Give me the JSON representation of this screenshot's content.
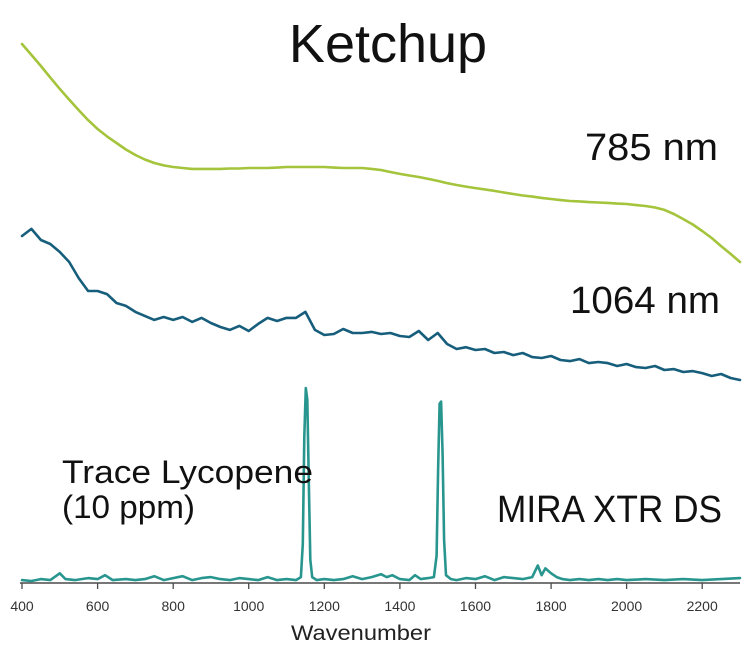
{
  "chart_data": {
    "type": "line",
    "title": "Ketchup",
    "xlabel": "Wavenumber",
    "ylabel": "",
    "xlim": [
      400,
      2300
    ],
    "xticks": [
      400,
      600,
      800,
      1000,
      1200,
      1400,
      1600,
      1800,
      2000,
      2200
    ],
    "y_axis": "hidden",
    "grid": false,
    "legend": "none",
    "series": [
      {
        "name": "785 nm",
        "color": "#a4c43c",
        "x": [
          400,
          425,
          450,
          475,
          500,
          525,
          550,
          575,
          600,
          625,
          650,
          675,
          700,
          725,
          750,
          775,
          800,
          825,
          850,
          875,
          900,
          925,
          950,
          975,
          1000,
          1025,
          1050,
          1075,
          1100,
          1125,
          1150,
          1175,
          1200,
          1225,
          1250,
          1275,
          1300,
          1325,
          1350,
          1375,
          1400,
          1425,
          1450,
          1475,
          1500,
          1525,
          1550,
          1575,
          1600,
          1625,
          1650,
          1675,
          1700,
          1725,
          1750,
          1775,
          1800,
          1825,
          1850,
          1875,
          1900,
          1925,
          1950,
          1975,
          2000,
          2025,
          2050,
          2075,
          2100,
          2125,
          2150,
          2175,
          2200,
          2225,
          2250,
          2275,
          2300
        ],
        "values": [
          100,
          95.0,
          89.9,
          84.6,
          79.4,
          74.5,
          69.7,
          65.1,
          61.0,
          57.6,
          54.6,
          51.6,
          49.1,
          47.0,
          45.4,
          44.3,
          43.6,
          43.1,
          42.7,
          42.7,
          42.7,
          42.7,
          42.9,
          42.9,
          43.1,
          43.1,
          43.1,
          43.3,
          43.6,
          43.6,
          43.6,
          43.6,
          43.6,
          43.3,
          43.1,
          43.1,
          43.1,
          42.7,
          42.2,
          41.3,
          40.4,
          39.7,
          39.0,
          38.1,
          37.2,
          36.2,
          35.3,
          34.6,
          33.9,
          33.3,
          32.6,
          31.9,
          31.2,
          30.5,
          30.0,
          29.4,
          28.9,
          28.4,
          28.0,
          27.8,
          27.5,
          27.3,
          27.1,
          26.8,
          26.6,
          26.1,
          25.7,
          25.0,
          23.9,
          22.0,
          19.7,
          17.2,
          14.2,
          11.0,
          7.3,
          3.7,
          0
        ]
      },
      {
        "name": "1064 nm",
        "color": "#165e7b",
        "x": [
          400,
          425,
          450,
          475,
          500,
          525,
          550,
          575,
          600,
          625,
          650,
          675,
          700,
          725,
          750,
          775,
          800,
          825,
          850,
          875,
          900,
          925,
          950,
          975,
          1000,
          1025,
          1050,
          1075,
          1100,
          1125,
          1150,
          1175,
          1200,
          1225,
          1250,
          1275,
          1300,
          1325,
          1350,
          1375,
          1400,
          1425,
          1450,
          1475,
          1500,
          1525,
          1550,
          1575,
          1600,
          1625,
          1650,
          1675,
          1700,
          1725,
          1750,
          1775,
          1800,
          1825,
          1850,
          1875,
          1900,
          1925,
          1950,
          1975,
          2000,
          2025,
          2050,
          2075,
          2100,
          2125,
          2150,
          2175,
          2200,
          2225,
          2250,
          2275,
          2300
        ],
        "values": [
          94.8,
          99.4,
          92.2,
          89.6,
          84.4,
          77.9,
          67.5,
          59.1,
          59.1,
          57.1,
          51.3,
          49.4,
          45.5,
          42.9,
          40.3,
          42.2,
          40.3,
          42.2,
          39.0,
          41.6,
          38.3,
          35.7,
          33.8,
          36.4,
          33.1,
          37.7,
          41.6,
          39.6,
          41.6,
          41.6,
          45.5,
          33.8,
          30.5,
          31.2,
          34.4,
          31.8,
          31.8,
          32.5,
          31.2,
          31.8,
          29.9,
          29.2,
          33.1,
          27.3,
          31.8,
          24.7,
          21.4,
          22.6,
          20.8,
          21.4,
          18.8,
          19.5,
          17.5,
          18.8,
          16.2,
          15.6,
          16.9,
          14.3,
          13.6,
          14.9,
          12.3,
          13.0,
          12.3,
          10.4,
          11.7,
          9.7,
          9.1,
          10.4,
          7.8,
          8.4,
          6.5,
          7.1,
          5.8,
          3.9,
          5.2,
          2.6,
          1.3
        ]
      },
      {
        "name": "MIRA XTR DS",
        "color": "#28968f",
        "x": [
          400,
          425,
          450,
          475,
          500,
          515,
          540,
          575,
          600,
          620,
          640,
          675,
          700,
          725,
          750,
          775,
          800,
          825,
          850,
          875,
          900,
          925,
          950,
          975,
          1000,
          1025,
          1050,
          1075,
          1100,
          1125,
          1138,
          1143,
          1147,
          1151,
          1155,
          1159,
          1163,
          1168,
          1180,
          1200,
          1225,
          1250,
          1275,
          1300,
          1325,
          1350,
          1365,
          1380,
          1400,
          1425,
          1440,
          1455,
          1475,
          1490,
          1497,
          1501,
          1505,
          1509,
          1513,
          1517,
          1522,
          1535,
          1550,
          1575,
          1600,
          1625,
          1650,
          1675,
          1700,
          1725,
          1750,
          1765,
          1775,
          1785,
          1800,
          1815,
          1830,
          1850,
          1875,
          1900,
          1925,
          1950,
          1975,
          2000,
          2050,
          2100,
          2150,
          2200,
          2250,
          2300
        ],
        "values": [
          1.5,
          1.0,
          2.0,
          1.5,
          5.0,
          2.0,
          1.5,
          2.5,
          2.0,
          4.0,
          1.5,
          2.0,
          1.5,
          2.0,
          3.5,
          1.5,
          2.5,
          3.5,
          1.5,
          2.5,
          3.0,
          2.0,
          1.5,
          2.5,
          2.0,
          1.5,
          3.0,
          1.5,
          2.0,
          1.5,
          3.0,
          20.0,
          75.0,
          100.0,
          94.0,
          52.0,
          12.0,
          3.0,
          1.5,
          2.0,
          1.5,
          2.0,
          3.5,
          2.0,
          3.0,
          4.5,
          3.0,
          4.0,
          2.0,
          1.5,
          4.0,
          2.0,
          2.5,
          3.0,
          14.0,
          58.0,
          92.0,
          93.0,
          66.0,
          22.0,
          4.0,
          2.0,
          1.5,
          2.5,
          2.0,
          3.5,
          1.5,
          3.0,
          2.5,
          2.0,
          3.0,
          9.0,
          4.0,
          7.5,
          5.0,
          3.0,
          2.0,
          1.5,
          2.0,
          1.5,
          2.0,
          1.5,
          2.0,
          1.5,
          2.0,
          1.5,
          2.0,
          1.5,
          2.0,
          2.5
        ]
      }
    ],
    "annotation": {
      "line1": "Trace Lycopene",
      "line2": "(10 ppm)"
    }
  }
}
